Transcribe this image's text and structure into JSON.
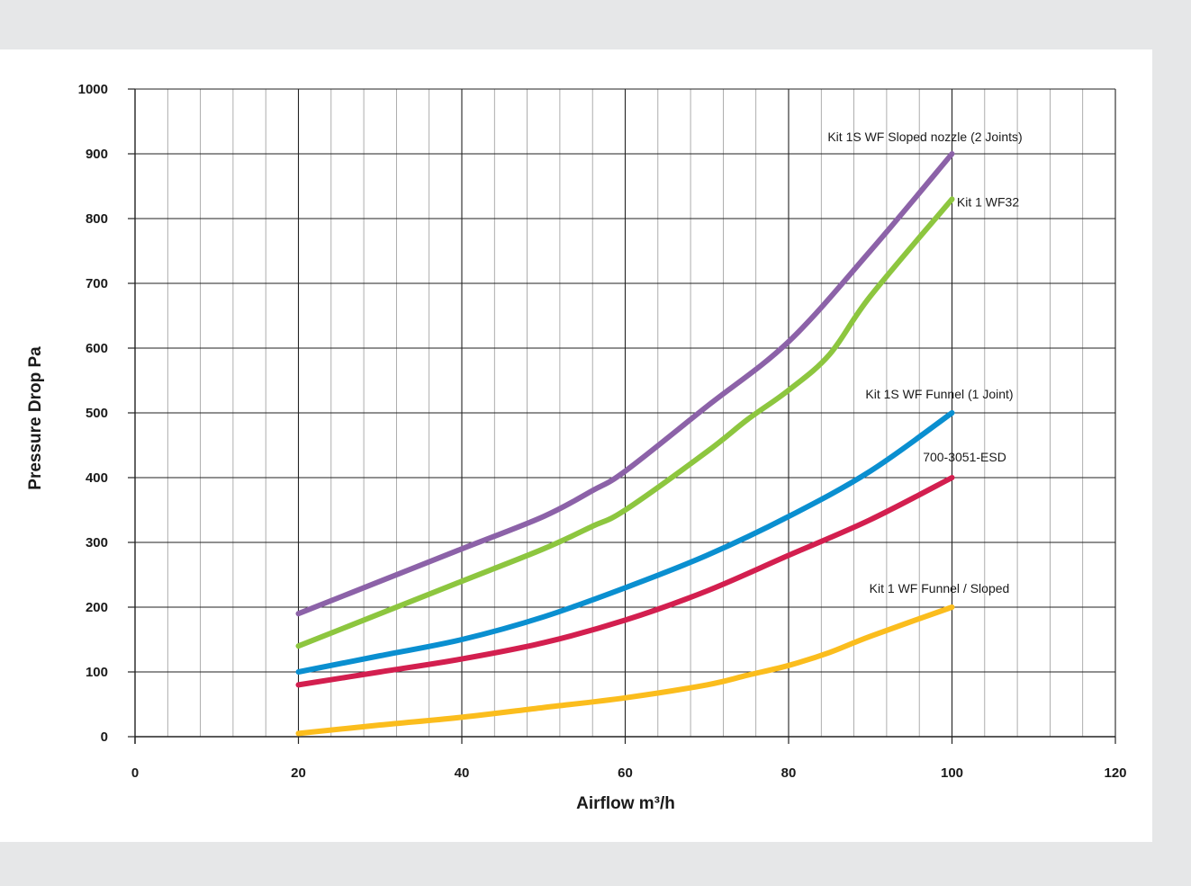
{
  "chart_data": {
    "type": "line",
    "xlabel": "Airflow m³/h",
    "ylabel": "Pressure Drop Pa",
    "xlim": [
      0,
      120
    ],
    "ylim": [
      0,
      1000
    ],
    "x_ticks": [
      "0",
      "20",
      "40",
      "60",
      "80",
      "100",
      "120"
    ],
    "y_ticks": [
      "0",
      "100",
      "200",
      "300",
      "400",
      "500",
      "600",
      "700",
      "800",
      "900",
      "1000"
    ],
    "grid": true,
    "legend": "inline labels at line ends",
    "series": [
      {
        "name": "Kit 1S WF Sloped nozzle (2 Joints)",
        "color": "#8c62a8",
        "points": [
          [
            20,
            190
          ],
          [
            30,
            240
          ],
          [
            40,
            290
          ],
          [
            50,
            340
          ],
          [
            56,
            380
          ],
          [
            60,
            410
          ],
          [
            70,
            510
          ],
          [
            80,
            610
          ],
          [
            90,
            750
          ],
          [
            100,
            900
          ]
        ]
      },
      {
        "name": "Kit 1 WF32",
        "color": "#8dc63f",
        "points": [
          [
            20,
            140
          ],
          [
            30,
            190
          ],
          [
            40,
            240
          ],
          [
            50,
            290
          ],
          [
            56,
            325
          ],
          [
            60,
            350
          ],
          [
            70,
            440
          ],
          [
            75,
            490
          ],
          [
            80,
            535
          ],
          [
            85,
            590
          ],
          [
            90,
            680
          ],
          [
            100,
            830
          ]
        ]
      },
      {
        "name": "Kit 1S WF Funnel (1 Joint)",
        "color": "#0a8fd0",
        "points": [
          [
            20,
            100
          ],
          [
            30,
            125
          ],
          [
            40,
            150
          ],
          [
            50,
            185
          ],
          [
            60,
            230
          ],
          [
            70,
            280
          ],
          [
            80,
            340
          ],
          [
            90,
            410
          ],
          [
            100,
            500
          ]
        ]
      },
      {
        "name": "700-3051-ESD",
        "color": "#d31f4f",
        "points": [
          [
            20,
            80
          ],
          [
            30,
            100
          ],
          [
            40,
            120
          ],
          [
            50,
            145
          ],
          [
            60,
            180
          ],
          [
            70,
            225
          ],
          [
            80,
            280
          ],
          [
            90,
            335
          ],
          [
            100,
            400
          ]
        ]
      },
      {
        "name": "Kit 1 WF Funnel / Sloped",
        "color": "#fbbd1d",
        "points": [
          [
            20,
            5
          ],
          [
            30,
            18
          ],
          [
            40,
            30
          ],
          [
            50,
            45
          ],
          [
            60,
            60
          ],
          [
            70,
            80
          ],
          [
            75,
            95
          ],
          [
            80,
            110
          ],
          [
            85,
            130
          ],
          [
            90,
            155
          ],
          [
            100,
            200
          ]
        ]
      }
    ]
  }
}
